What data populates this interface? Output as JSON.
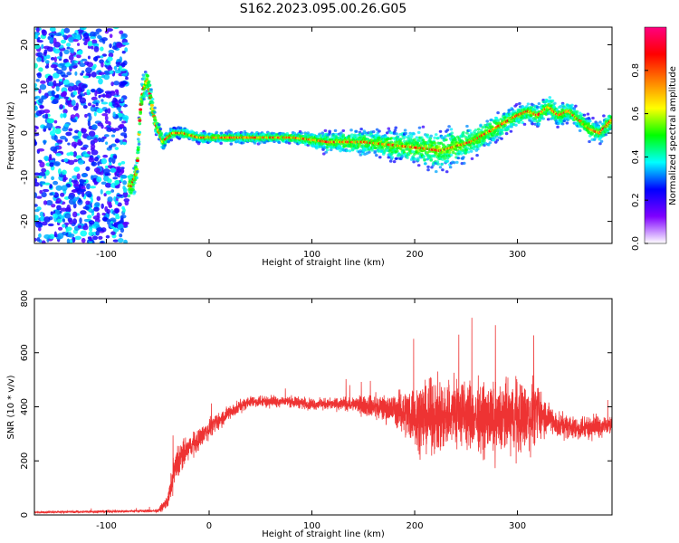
{
  "title": "S162.2023.095.00.26.G05",
  "chart_data": [
    {
      "type": "heatmap",
      "xlabel": "Height of straight line (km)",
      "ylabel": "Frequency (Hz)",
      "xlim": [
        -170,
        392
      ],
      "ylim": [
        -25,
        24
      ],
      "x_ticks": [
        -100,
        0,
        100,
        200,
        300
      ],
      "x_tick_labels": [
        "-100",
        "0",
        "100",
        "200",
        "300"
      ],
      "y_ticks": [
        -20,
        -10,
        0,
        10,
        20
      ],
      "y_tick_labels": [
        "-20",
        "-10",
        "0",
        "10",
        "20"
      ],
      "colorbar": {
        "label": "Normalized spectral amplitude",
        "range": [
          0,
          1
        ],
        "ticks": [
          0.0,
          0.2,
          0.4,
          0.6,
          0.8
        ],
        "tick_labels": [
          "0.0",
          "0.2",
          "0.4",
          "0.6",
          "0.8"
        ],
        "colors": [
          "#ffffff",
          "#7f00ff",
          "#0000ff",
          "#00ffff",
          "#00ff00",
          "#ffff00",
          "#ff8000",
          "#ff0000",
          "#ff0080"
        ]
      },
      "ridge": {
        "x": [
          -75,
          -70,
          -67,
          -64,
          -60,
          -57,
          -52,
          -48,
          -45,
          -40,
          -35,
          -25,
          -10,
          0,
          20,
          40,
          60,
          80,
          100,
          115,
          130,
          150,
          170,
          190,
          210,
          225,
          240,
          255,
          270,
          285,
          300,
          310,
          320,
          330,
          340,
          350,
          360,
          370,
          380,
          392
        ],
        "y": [
          -12,
          -8,
          5,
          10,
          12,
          8,
          2,
          0,
          -2,
          -1,
          0,
          0,
          -1,
          -1,
          -1,
          -1,
          -1,
          -1,
          -1.5,
          -2,
          -2,
          -2,
          -2.5,
          -3,
          -3.5,
          -4,
          -3,
          -2,
          0,
          2,
          4,
          5,
          4,
          6,
          4,
          5,
          3,
          1,
          0,
          3
        ],
        "spread": [
          3,
          3,
          3,
          3,
          3,
          3,
          2,
          1.5,
          1.5,
          1.2,
          1,
          1,
          1,
          1,
          1,
          1,
          1,
          1,
          1.5,
          2,
          2,
          2.5,
          2.5,
          3,
          3.5,
          4,
          3.5,
          3,
          2.5,
          2.5,
          2,
          2,
          2,
          2.5,
          2,
          2,
          2,
          2,
          2,
          2
        ]
      }
    },
    {
      "type": "line",
      "xlabel": "Height of straight line (km)",
      "ylabel": "SNR (10 * v/v)",
      "xlim": [
        -170,
        392
      ],
      "ylim": [
        0,
        800
      ],
      "x_ticks": [
        -100,
        0,
        100,
        200,
        300
      ],
      "x_tick_labels": [
        "-100",
        "0",
        "100",
        "200",
        "300"
      ],
      "y_ticks": [
        0,
        200,
        400,
        600,
        800
      ],
      "y_tick_labels": [
        "0",
        "200",
        "400",
        "600",
        "800"
      ],
      "color": "#ee3333",
      "envelope": {
        "x": [
          -170,
          -50,
          -40,
          -35,
          -30,
          -25,
          -20,
          -10,
          0,
          20,
          40,
          60,
          80,
          100,
          120,
          140,
          160,
          180,
          190,
          200,
          220,
          240,
          260,
          280,
          300,
          310,
          320,
          330,
          340,
          360,
          380,
          392
        ],
        "mean": [
          10,
          15,
          50,
          150,
          200,
          220,
          250,
          280,
          320,
          380,
          420,
          420,
          420,
          410,
          410,
          410,
          400,
          390,
          380,
          370,
          360,
          380,
          360,
          350,
          370,
          360,
          380,
          360,
          330,
          320,
          330,
          330
        ],
        "amplitude": [
          6,
          8,
          40,
          80,
          100,
          80,
          60,
          60,
          50,
          40,
          30,
          30,
          30,
          30,
          30,
          40,
          60,
          80,
          120,
          170,
          190,
          200,
          180,
          190,
          200,
          190,
          150,
          80,
          70,
          60,
          60,
          60
        ]
      }
    }
  ]
}
